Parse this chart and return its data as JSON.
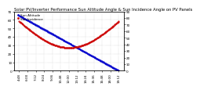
{
  "title": "Solar PV/Inverter Performance Sun Altitude Angle & Sun Incidence Angle on PV Panels",
  "line1_label": "Sun Altitude",
  "line2_label": "Sun Incidence",
  "line1_color": "#0000cc",
  "line2_color": "#cc0000",
  "background_color": "#ffffff",
  "grid_color": "#888888",
  "ylim_left": [
    0,
    70
  ],
  "ylim_right": [
    0,
    90
  ],
  "ylim_left_ticks": [
    0,
    10,
    20,
    30,
    40,
    50,
    60,
    70
  ],
  "ylim_right_ticks": [
    0,
    10,
    20,
    30,
    40,
    50,
    60,
    70,
    80,
    90
  ],
  "x_ticks": [
    "4:48",
    "6:00",
    "7:12",
    "8:24",
    "9:36",
    "10:48",
    "12:00",
    "13:12",
    "14:24",
    "15:36",
    "16:48",
    "18:00",
    "19:12"
  ],
  "title_fontsize": 3.8,
  "tick_fontsize": 3.0,
  "legend_fontsize": 3.0
}
